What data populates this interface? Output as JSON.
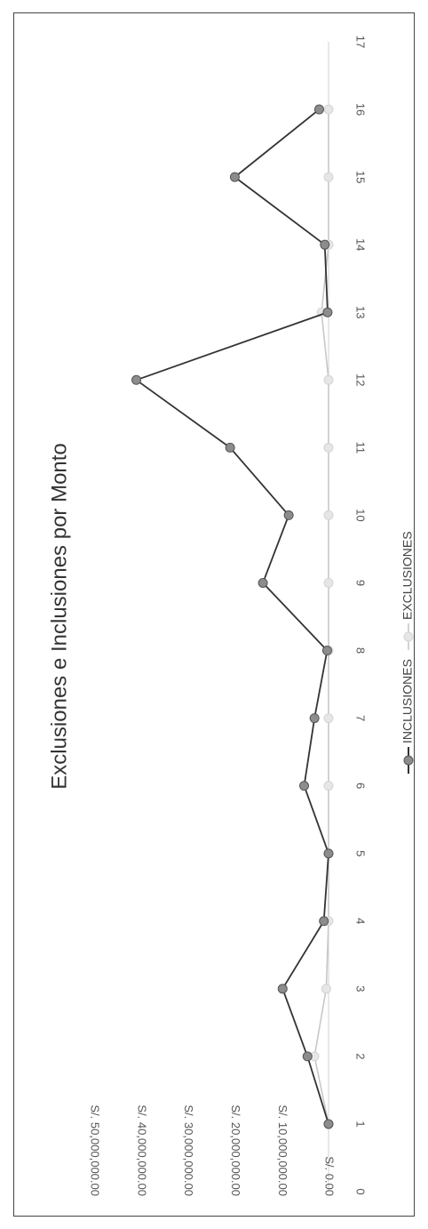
{
  "chart_data": {
    "type": "line",
    "title": "Exclusiones e Inclusiones por Monto",
    "xlabel": "",
    "ylabel": "",
    "x_ticks": [
      0,
      1,
      2,
      3,
      4,
      5,
      6,
      7,
      8,
      9,
      10,
      11,
      12,
      13,
      14,
      15,
      16,
      17
    ],
    "xlim": [
      0,
      17
    ],
    "y_ticks": [
      {
        "value": 0,
        "label": "S/. 0.00"
      },
      {
        "value": 10000000,
        "label": "S/. 10,000,000.00"
      },
      {
        "value": 20000000,
        "label": "S/. 20,000,000.00"
      },
      {
        "value": 30000000,
        "label": "S/. 30,000,000.00"
      },
      {
        "value": 40000000,
        "label": "S/. 40,000,000.00"
      },
      {
        "value": 50000000,
        "label": "S/. 50,000,000.00"
      }
    ],
    "ylim": [
      0,
      50000000
    ],
    "orientation": "rotated-90-clockwise",
    "grid": false,
    "legend_position": "bottom",
    "x": [
      1,
      2,
      3,
      4,
      5,
      6,
      7,
      8,
      9,
      10,
      11,
      12,
      13,
      14,
      15,
      16
    ],
    "series": [
      {
        "name": "INCLUSIONES",
        "color": "#333333",
        "marker_color": "#8c8c8c",
        "values": [
          0,
          4500000,
          9800000,
          1000000,
          0,
          5200000,
          3000000,
          300000,
          14000000,
          8500000,
          21000000,
          41000000,
          200000,
          800000,
          20000000,
          2000000
        ]
      },
      {
        "name": "EXCLUSIONES",
        "color": "#c8c8c8",
        "marker_color": "#e6e6e6",
        "values": [
          0,
          3000000,
          500000,
          0,
          0,
          0,
          0,
          0,
          0,
          0,
          0,
          0,
          1500000,
          0,
          0,
          0
        ]
      }
    ]
  }
}
